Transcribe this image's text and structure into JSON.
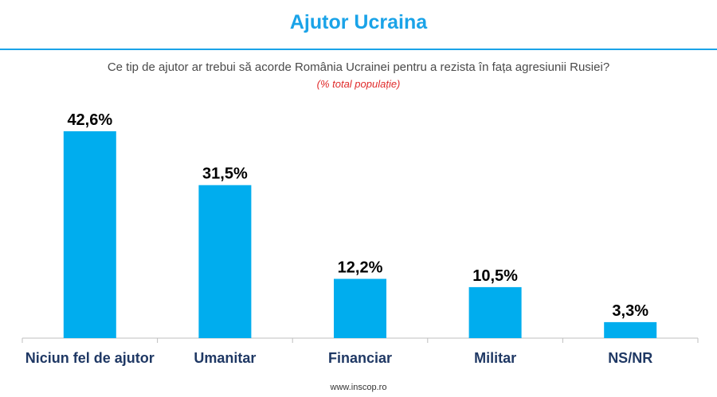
{
  "header": {
    "title": "Ajutor Ucraina",
    "question": "Ce tip de ajutor ar trebui să acorde România Ucrainei pentru a rezista în fața agresiunii Rusiei?",
    "note": "(% total populație)"
  },
  "footer": {
    "source": "www.inscop.ro"
  },
  "colors": {
    "accent": "#1aa3e8",
    "bar": "#00adee",
    "note": "#e02a2a"
  },
  "chart_data": {
    "type": "bar",
    "title": "Ajutor Ucraina",
    "categories": [
      "Niciun fel de ajutor",
      "Umanitar",
      "Financiar",
      "Militar",
      "NS/NR"
    ],
    "values": [
      42.6,
      31.5,
      12.2,
      10.5,
      3.3
    ],
    "value_labels": [
      "42,6%",
      "31,5%",
      "12,2%",
      "10,5%",
      "3,3%"
    ],
    "xlabel": "",
    "ylabel": "",
    "ylim": [
      0,
      42.6
    ],
    "grid": false,
    "legend": "none"
  }
}
